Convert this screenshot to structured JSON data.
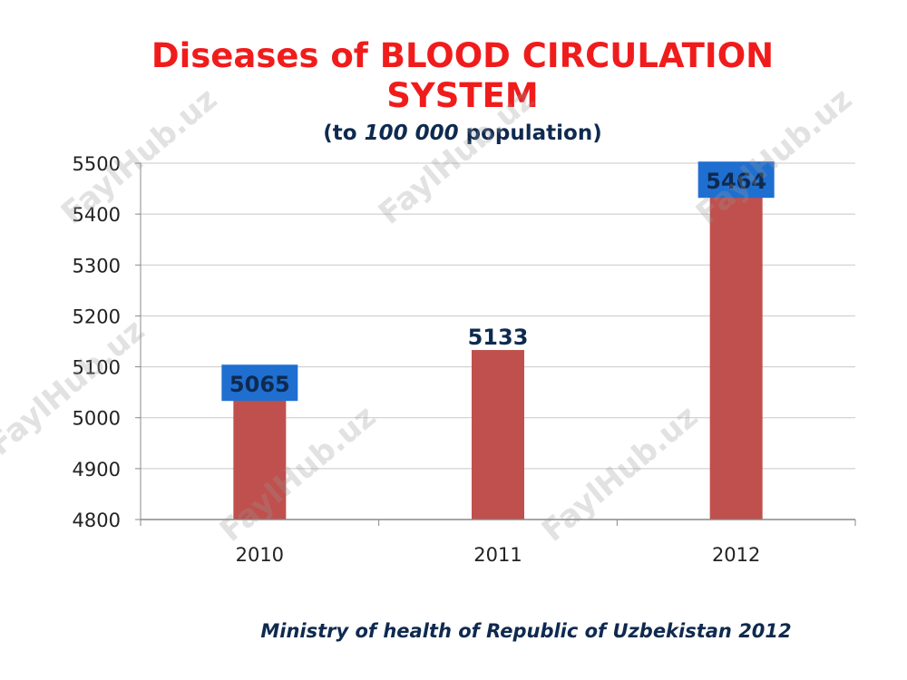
{
  "watermark_text": "FaylHub.uz",
  "footer": {
    "source": "Ministry of health of Republic of Uzbekistan 2012"
  },
  "chart_data": {
    "type": "bar",
    "title": "Diseases of BLOOD CIRCULATION SYSTEM",
    "subtitle": {
      "before": "(to ",
      "emphasis": "100 000",
      "after": " population)"
    },
    "categories": [
      "2010",
      "2011",
      "2012"
    ],
    "values": [
      5065,
      5133,
      5464
    ],
    "value_labels": [
      "5065",
      "5133",
      "5464"
    ],
    "label_highlighted": [
      true,
      false,
      true
    ],
    "ylim": [
      4800,
      5500
    ],
    "yticks": [
      4800,
      4900,
      5000,
      5100,
      5200,
      5300,
      5400,
      5500
    ],
    "grid": true,
    "legend": "none",
    "xlabel": "",
    "ylabel": "",
    "colors": {
      "bar": "#c0504d",
      "label_box": "#1f6fd1",
      "label_text": "#0f2a4f",
      "grid": "#c8c8c8",
      "axis": "#888888",
      "title": "#f01c1c"
    }
  }
}
